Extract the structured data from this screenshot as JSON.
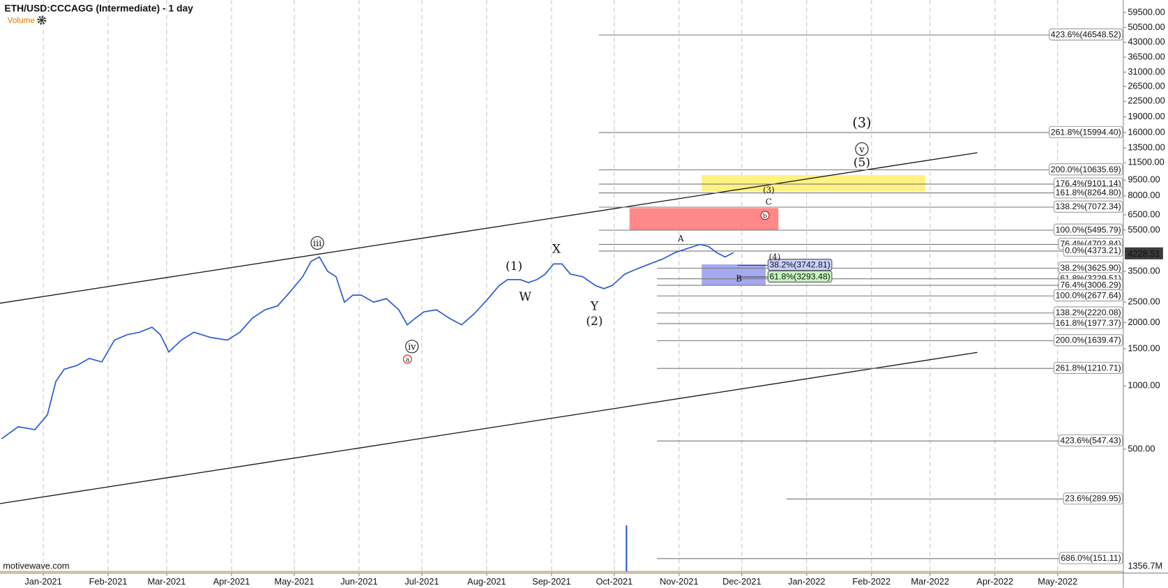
{
  "header": {
    "title": "ETH/USD:CCCAGG (Intermediate) - 1 day",
    "indicator": "Volume"
  },
  "watermark": "motivewave.com",
  "chart_data": {
    "type": "line",
    "log_scale": true,
    "grid": true,
    "color": "#2a5bd7",
    "x": [
      -20,
      -12,
      -4,
      2,
      6,
      10,
      16,
      22,
      28,
      34,
      40,
      46,
      52,
      56,
      60,
      66,
      72,
      80,
      88,
      94,
      100,
      106,
      112,
      118,
      124,
      128,
      132,
      136,
      140,
      144,
      148,
      152,
      158,
      164,
      170,
      174,
      178,
      182,
      188,
      194,
      200,
      206,
      212,
      218,
      222,
      228,
      232,
      236,
      240,
      244,
      248,
      252,
      258,
      264,
      268,
      272,
      278,
      284,
      290,
      296,
      302,
      308,
      314,
      318,
      322,
      326,
      330
    ],
    "values": [
      560,
      640,
      620,
      730,
      1050,
      1200,
      1250,
      1350,
      1300,
      1650,
      1750,
      1800,
      1900,
      1750,
      1450,
      1650,
      1800,
      1700,
      1650,
      1800,
      2100,
      2300,
      2400,
      2800,
      3300,
      3900,
      4100,
      3500,
      3300,
      2500,
      2700,
      2700,
      2500,
      2600,
      2300,
      1950,
      2100,
      2250,
      2300,
      2100,
      1950,
      2200,
      2550,
      3000,
      3200,
      3200,
      3100,
      3200,
      3400,
      3800,
      3800,
      3400,
      3300,
      3000,
      2900,
      3000,
      3400,
      3600,
      3800,
      4000,
      4300,
      4500,
      4700,
      4600,
      4300,
      4100,
      4300
    ],
    "xlim": [
      -20.7,
      516.4
    ],
    "xticks": [
      {
        "value": 0,
        "label": "Jan-2021"
      },
      {
        "value": 31,
        "label": "Feb-2021"
      },
      {
        "value": 59,
        "label": "Mar-2021"
      },
      {
        "value": 90,
        "label": "Apr-2021"
      },
      {
        "value": 120,
        "label": "May-2021"
      },
      {
        "value": 151,
        "label": "Jun-2021"
      },
      {
        "value": 181,
        "label": "Jul-2021"
      },
      {
        "value": 212,
        "label": "Aug-2021"
      },
      {
        "value": 243,
        "label": "Sep-2021"
      },
      {
        "value": 273,
        "label": "Oct-2021"
      },
      {
        "value": 304,
        "label": "Nov-2021"
      },
      {
        "value": 334,
        "label": "Dec-2021"
      },
      {
        "value": 365,
        "label": "Jan-2022"
      },
      {
        "value": 396,
        "label": "Feb-2022"
      },
      {
        "value": 424,
        "label": "Mar-2022"
      },
      {
        "value": 455,
        "label": "Apr-2022"
      },
      {
        "value": 485,
        "label": "May-2022"
      }
    ],
    "ylim": [
      129,
      68200
    ],
    "yticks": [
      {
        "value": 59500,
        "label": "59500.00"
      },
      {
        "value": 50500,
        "label": "50500.00"
      },
      {
        "value": 43000,
        "label": "43000.00"
      },
      {
        "value": 36500,
        "label": "36500.00"
      },
      {
        "value": 31000,
        "label": "31000.00"
      },
      {
        "value": 26500,
        "label": "26500.00"
      },
      {
        "value": 22500,
        "label": "22500.00"
      },
      {
        "value": 19000,
        "label": "19000.00"
      },
      {
        "value": 16000,
        "label": "16000.00"
      },
      {
        "value": 13500,
        "label": "13500.00"
      },
      {
        "value": 11500,
        "label": "11500.00"
      },
      {
        "value": 9500,
        "label": "9500.00"
      },
      {
        "value": 8000,
        "label": "8000.00"
      },
      {
        "value": 6500,
        "label": "6500.00"
      },
      {
        "value": 5500,
        "label": "5500.00"
      },
      {
        "value": 3500,
        "label": "3500.00"
      },
      {
        "value": 2500,
        "label": "2500.00"
      },
      {
        "value": 2000,
        "label": "2000.00"
      },
      {
        "value": 1500,
        "label": "1500.00"
      },
      {
        "value": 1000,
        "label": "1000.00"
      },
      {
        "value": 500,
        "label": "500.00"
      }
    ],
    "last_price": 4228.51,
    "volume_label": "1356.7M",
    "fib_upper": [
      {
        "label": "423.6%(46548.52)",
        "value": 46548.52
      },
      {
        "label": "261.8%(15994.40)",
        "value": 15994.4
      },
      {
        "label": "200.0%(10635.69)",
        "value": 10635.69
      },
      {
        "label": "176.4%(9101.14)",
        "value": 9101.14
      },
      {
        "label": "161.8%(8264.80)",
        "value": 8264.8
      },
      {
        "label": "138.2%(7072.34)",
        "value": 7072.34
      },
      {
        "label": "100.0%(5495.79)",
        "value": 5495.79
      },
      {
        "label": "76.4%(4702.84)",
        "value": 4702.84
      },
      {
        "label": "0.0%(4373.21)",
        "value": 4373.21
      }
    ],
    "fib_lower": [
      {
        "label": "38.2%(3625.90)",
        "value": 3625.9
      },
      {
        "label": "61.8%(3229.51)",
        "value": 3229.51
      },
      {
        "label": "76.4%(3006.29)",
        "value": 3006.29
      },
      {
        "label": "100.0%(2677.64)",
        "value": 2677.64
      },
      {
        "label": "138.2%(2220.08)",
        "value": 2220.08
      },
      {
        "label": "161.8%(1977.37)",
        "value": 1977.37
      },
      {
        "label": "200.0%(1639.47)",
        "value": 1639.47
      },
      {
        "label": "261.8%(1210.71)",
        "value": 1210.71
      },
      {
        "label": "423.6%(547.43)",
        "value": 547.43
      },
      {
        "label": "686.0%(151.11)",
        "value": 151.11
      }
    ],
    "fib_far": [
      {
        "label": "23.6%(289.95)",
        "value": 289.95
      }
    ],
    "fib_highlight": [
      {
        "label": "38.2%(3742.81)",
        "value": 3742.81,
        "color": "#c9d0ff"
      },
      {
        "label": "61.8%(3293.48)",
        "value": 3293.48,
        "color": "#c8f5c0"
      }
    ],
    "zones": [
      {
        "color": "#fff176",
        "x": [
          314.8,
          421.7
        ],
        "y": [
          8390,
          10050
        ]
      },
      {
        "color": "#ff7b7b",
        "x": [
          280.3,
          351.5
        ],
        "y": [
          5500,
          7000
        ]
      },
      {
        "color": "#9aa0f0",
        "x": [
          314.8,
          345.4
        ],
        "y": [
          3010,
          3780
        ]
      }
    ],
    "trendlines": [
      {
        "x": [
          -20.7,
          446.6
        ],
        "y": [
          2472,
          12830
        ]
      },
      {
        "x": [
          -20.7,
          446.6
        ],
        "y": [
          275.8,
          1443
        ]
      }
    ],
    "wave_labels": [
      {
        "text": "iii",
        "style": "circle"
      },
      {
        "text": "iv",
        "style": "circle"
      },
      {
        "text": "a",
        "style": "red-circle"
      },
      {
        "text": "(1)",
        "style": "plain"
      },
      {
        "text": "W",
        "style": "plain"
      },
      {
        "text": "X",
        "style": "plain"
      },
      {
        "text": "Y",
        "style": "plain"
      },
      {
        "text": "(2)",
        "style": "plain"
      },
      {
        "text": "A",
        "style": "small"
      },
      {
        "text": "B",
        "style": "small"
      },
      {
        "text": "C",
        "style": "small"
      },
      {
        "text": "(3)",
        "style": "small"
      },
      {
        "text": "b",
        "style": "red-circle"
      },
      {
        "text": "(4)",
        "style": "small"
      },
      {
        "text": "(3)",
        "style": "large"
      },
      {
        "text": "v",
        "style": "circle"
      },
      {
        "text": "(5)",
        "style": "plain"
      }
    ]
  }
}
